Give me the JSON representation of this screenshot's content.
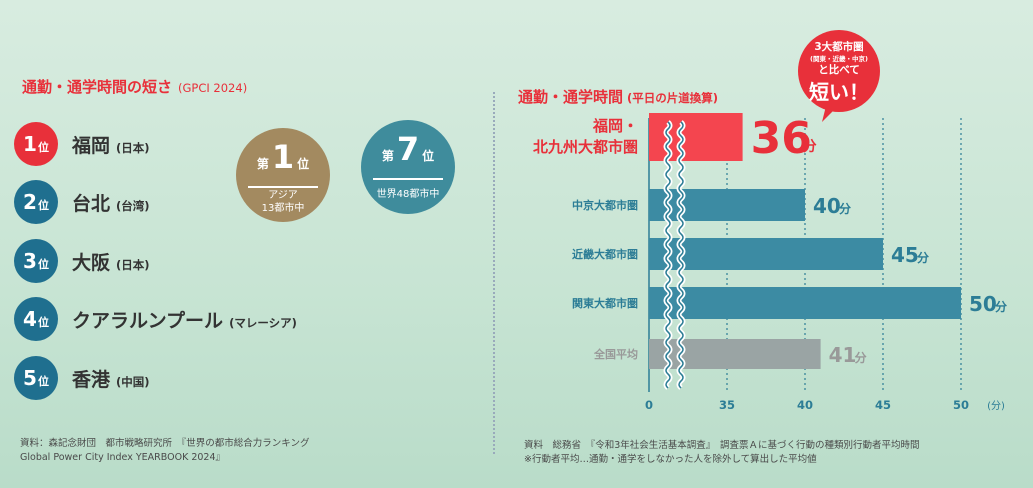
{
  "left": {
    "title": "通勤・通学時間の短さ",
    "subtitle": "(GPCI 2024)",
    "ranks": [
      {
        "num": "1",
        "suffix": "位",
        "name": "福岡",
        "country": "(日本)",
        "color": "#e8303a"
      },
      {
        "num": "2",
        "suffix": "位",
        "name": "台北",
        "country": "(台湾)",
        "color": "#1f6f8f"
      },
      {
        "num": "3",
        "suffix": "位",
        "name": "大阪",
        "country": "(日本)",
        "color": "#1f6f8f"
      },
      {
        "num": "4",
        "suffix": "位",
        "name": "クアラルンプール",
        "country": "(マレーシア)",
        "color": "#1f6f8f"
      },
      {
        "num": "5",
        "suffix": "位",
        "name": "香港",
        "country": "(中国)",
        "color": "#1f6f8f"
      }
    ],
    "badges": [
      {
        "pre": "第",
        "num": "1",
        "suf": "位",
        "line1": "アジア",
        "line2": "13都市中",
        "color": "#a38a60"
      },
      {
        "pre": "第",
        "num": "7",
        "suf": "位",
        "line1": "世界48都市中",
        "line2": "",
        "color": "#3f8c9c"
      }
    ],
    "source_line1": "資料：森記念財団　都市戦略研究所　『世界の都市総合力ランキング",
    "source_line2": "Global Power City Index YEARBOOK 2024』"
  },
  "right": {
    "title": "通勤・通学時間",
    "subtitle": "(平日の片道換算)",
    "bubble_line1": "3大都市圏",
    "bubble_line2": "(関東・近畿・中京)",
    "bubble_line3": "と比べて",
    "bubble_line4": "短い！",
    "source_line1": "資料　総務省　『令和3年社会生活基本調査』　調査票Ａに基づく行動の種類別行動者平均時間",
    "source_line2": "※行動者平均…通勤・通学をしなかった人を除外して算出した平均値"
  },
  "chart_data": {
    "type": "bar",
    "orientation": "horizontal",
    "categories": [
      "福岡・北九州大都市圏",
      "中京大都市圏",
      "近畿大都市圏",
      "関東大都市圏",
      "全国平均"
    ],
    "category_lines": [
      [
        "福岡・",
        "北九州大都市圏"
      ],
      [
        "中京大都市圏"
      ],
      [
        "近畿大都市圏"
      ],
      [
        "関東大都市圏"
      ],
      [
        "全国平均"
      ]
    ],
    "values": [
      36,
      40,
      45,
      50,
      41
    ],
    "value_unit": "分",
    "colors": [
      "#f4454f",
      "#3c8ba3",
      "#3c8ba3",
      "#3c8ba3",
      "#9aa4a4"
    ],
    "label_colors": [
      "#e8303a",
      "#2c7d96",
      "#2c7d96",
      "#2c7d96",
      "#999999"
    ],
    "xlim": [
      0,
      50
    ],
    "axis_break": true,
    "x_ticks": [
      "0",
      "35",
      "40",
      "45",
      "50"
    ],
    "x_unit": "(分)"
  }
}
